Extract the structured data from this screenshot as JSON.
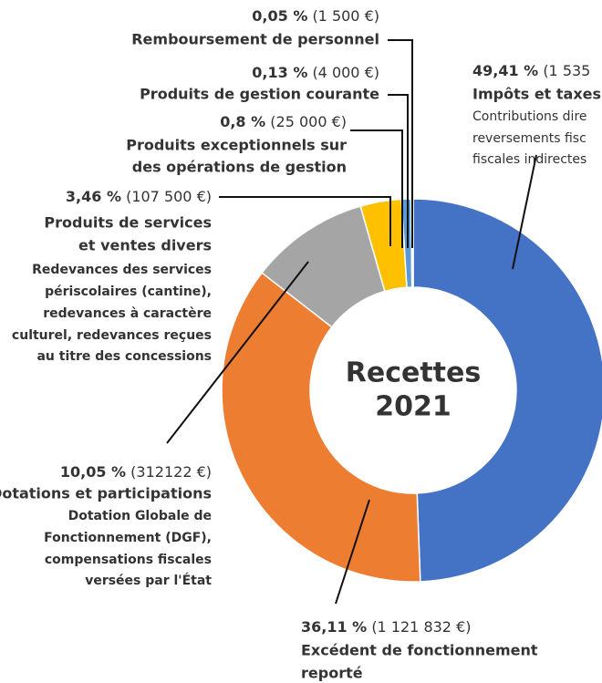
{
  "chart_data": {
    "type": "pie",
    "center_label": [
      "Recettes",
      "2021"
    ],
    "categories": [
      [
        "Impôts et taxes"
      ],
      [
        "Excédent de fonctionnement",
        "reporté"
      ],
      [
        "Dotations et participations"
      ],
      [
        "Produits de services",
        "et ventes divers"
      ],
      [
        "Produits exceptionnels sur",
        "des opérations de gestion"
      ],
      [
        "Produits de gestion courante"
      ],
      [
        "Remboursement de personnel"
      ]
    ],
    "descriptions": [
      [
        "Contributions dire",
        "reversements fisc",
        "fiscales indirectes"
      ],
      [],
      [
        "Dotation Globale de",
        "Fonctionnement (DGF),",
        "compensations fiscales",
        "versées par l'État"
      ],
      [
        "Redevances des services",
        "périscolaires (cantine),",
        "redevances à caractère",
        "culturel, redevances reçues",
        "au titre des concessions"
      ],
      [],
      [],
      []
    ],
    "values": [
      49.41,
      36.11,
      10.05,
      3.46,
      0.8,
      0.13,
      0.05
    ],
    "value_labels": [
      "49,41 %",
      "36,11 %",
      "10,05 %",
      "3,46 %",
      "0,8 %",
      "0,13 %",
      "0,05 %"
    ],
    "amount_labels": [
      "(1 535",
      "(1 121 832 €)",
      "(312122 €)",
      "(107 500 €)",
      "(25 000 €)",
      "(4 000 €)",
      "(1 500 €)"
    ],
    "colors": [
      "#4472c4",
      "#ed7d31",
      "#a5a5a5",
      "#ffc000",
      "#5b9bd5",
      "#264478",
      "#70ad47"
    ]
  }
}
